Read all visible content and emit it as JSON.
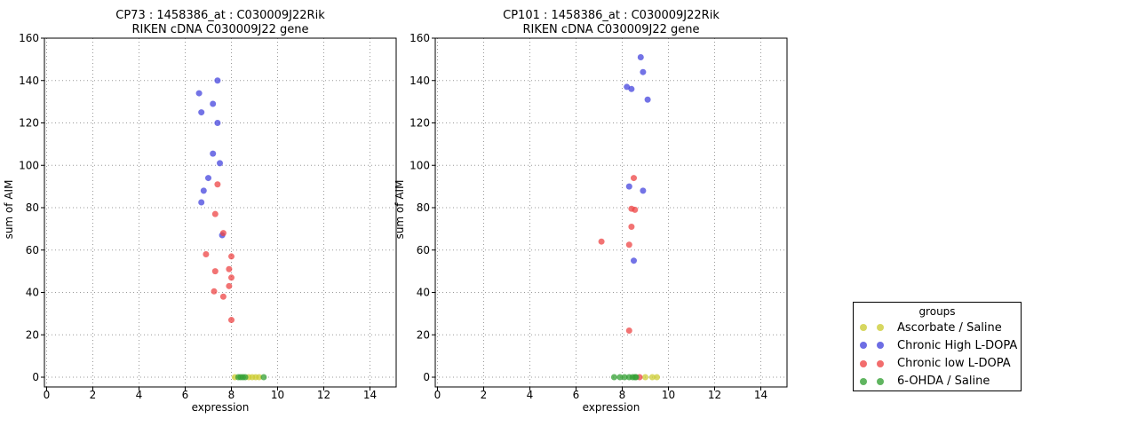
{
  "legend": {
    "title": "groups",
    "entries": [
      {
        "label": "Ascorbate / Saline",
        "color": "#cccc33"
      },
      {
        "label": "Chronic High L-DOPA",
        "color": "#4444dd"
      },
      {
        "label": "Chronic low L-DOPA",
        "color": "#ee4444"
      },
      {
        "label": "6-OHDA / Saline",
        "color": "#33a033"
      }
    ]
  },
  "chart_data": [
    {
      "type": "scatter",
      "title_line1": "CP73 : 1458386_at : C030009J22Rik",
      "title_line2": "RIKEN cDNA C030009J22 gene",
      "xlabel": "expression",
      "ylabel": "sum of AIM",
      "xlim": [
        0,
        15
      ],
      "ylim": [
        0,
        160
      ],
      "xticks": [
        0,
        2,
        4,
        6,
        8,
        10,
        12,
        14
      ],
      "yticks": [
        0,
        20,
        40,
        60,
        80,
        100,
        120,
        140,
        160
      ],
      "grid": true,
      "legend_position": "outside-right",
      "series": [
        {
          "name": "Ascorbate / Saline",
          "color": "#cccc33",
          "points": [
            [
              8.15,
              0
            ],
            [
              8.75,
              0
            ],
            [
              8.9,
              0
            ],
            [
              9.05,
              0
            ],
            [
              9.2,
              0
            ]
          ]
        },
        {
          "name": "Chronic High L-DOPA",
          "color": "#4444dd",
          "points": [
            [
              7.4,
              140
            ],
            [
              6.6,
              134
            ],
            [
              7.2,
              129
            ],
            [
              6.7,
              125
            ],
            [
              7.4,
              120
            ],
            [
              7.2,
              105.5
            ],
            [
              7.5,
              101
            ],
            [
              7.0,
              94
            ],
            [
              6.8,
              88
            ],
            [
              6.7,
              82.5
            ],
            [
              7.6,
              67
            ]
          ]
        },
        {
          "name": "Chronic low L-DOPA",
          "color": "#ee4444",
          "points": [
            [
              7.4,
              91
            ],
            [
              7.3,
              77
            ],
            [
              7.65,
              68
            ],
            [
              6.9,
              58
            ],
            [
              8.0,
              57
            ],
            [
              7.9,
              51
            ],
            [
              7.3,
              50
            ],
            [
              8.0,
              47
            ],
            [
              7.9,
              43
            ],
            [
              7.25,
              40.5
            ],
            [
              7.65,
              38
            ],
            [
              8.0,
              27
            ]
          ]
        },
        {
          "name": "6-OHDA / Saline",
          "color": "#33a033",
          "points": [
            [
              8.3,
              0
            ],
            [
              8.4,
              0
            ],
            [
              8.5,
              0
            ],
            [
              8.6,
              0
            ],
            [
              9.4,
              0
            ]
          ]
        }
      ]
    },
    {
      "type": "scatter",
      "title_line1": "CP101 : 1458386_at : C030009J22Rik",
      "title_line2": "RIKEN cDNA C030009J22 gene",
      "xlabel": "expression",
      "ylabel": "sum of AIM",
      "xlim": [
        0,
        15
      ],
      "ylim": [
        0,
        160
      ],
      "xticks": [
        0,
        2,
        4,
        6,
        8,
        10,
        12,
        14
      ],
      "yticks": [
        0,
        20,
        40,
        60,
        80,
        100,
        120,
        140,
        160
      ],
      "grid": true,
      "legend_position": "outside-right",
      "series": [
        {
          "name": "Ascorbate / Saline",
          "color": "#cccc33",
          "points": [
            [
              9.0,
              0
            ],
            [
              9.3,
              0
            ],
            [
              9.5,
              0
            ]
          ]
        },
        {
          "name": "Chronic High L-DOPA",
          "color": "#4444dd",
          "points": [
            [
              8.8,
              151
            ],
            [
              8.9,
              144
            ],
            [
              8.2,
              137
            ],
            [
              8.4,
              136
            ],
            [
              9.1,
              131
            ],
            [
              8.3,
              90
            ],
            [
              8.9,
              88
            ],
            [
              8.5,
              55
            ]
          ]
        },
        {
          "name": "Chronic low L-DOPA",
          "color": "#ee4444",
          "points": [
            [
              8.5,
              94
            ],
            [
              8.4,
              79.5
            ],
            [
              8.55,
              79
            ],
            [
              8.4,
              71
            ],
            [
              7.1,
              64
            ],
            [
              8.3,
              62.5
            ],
            [
              8.3,
              22
            ],
            [
              8.75,
              0
            ]
          ]
        },
        {
          "name": "6-OHDA / Saline",
          "color": "#33a033",
          "points": [
            [
              7.65,
              0
            ],
            [
              7.9,
              0
            ],
            [
              8.1,
              0
            ],
            [
              8.3,
              0
            ],
            [
              8.45,
              0
            ],
            [
              8.55,
              0
            ],
            [
              8.6,
              0
            ]
          ]
        }
      ]
    }
  ]
}
